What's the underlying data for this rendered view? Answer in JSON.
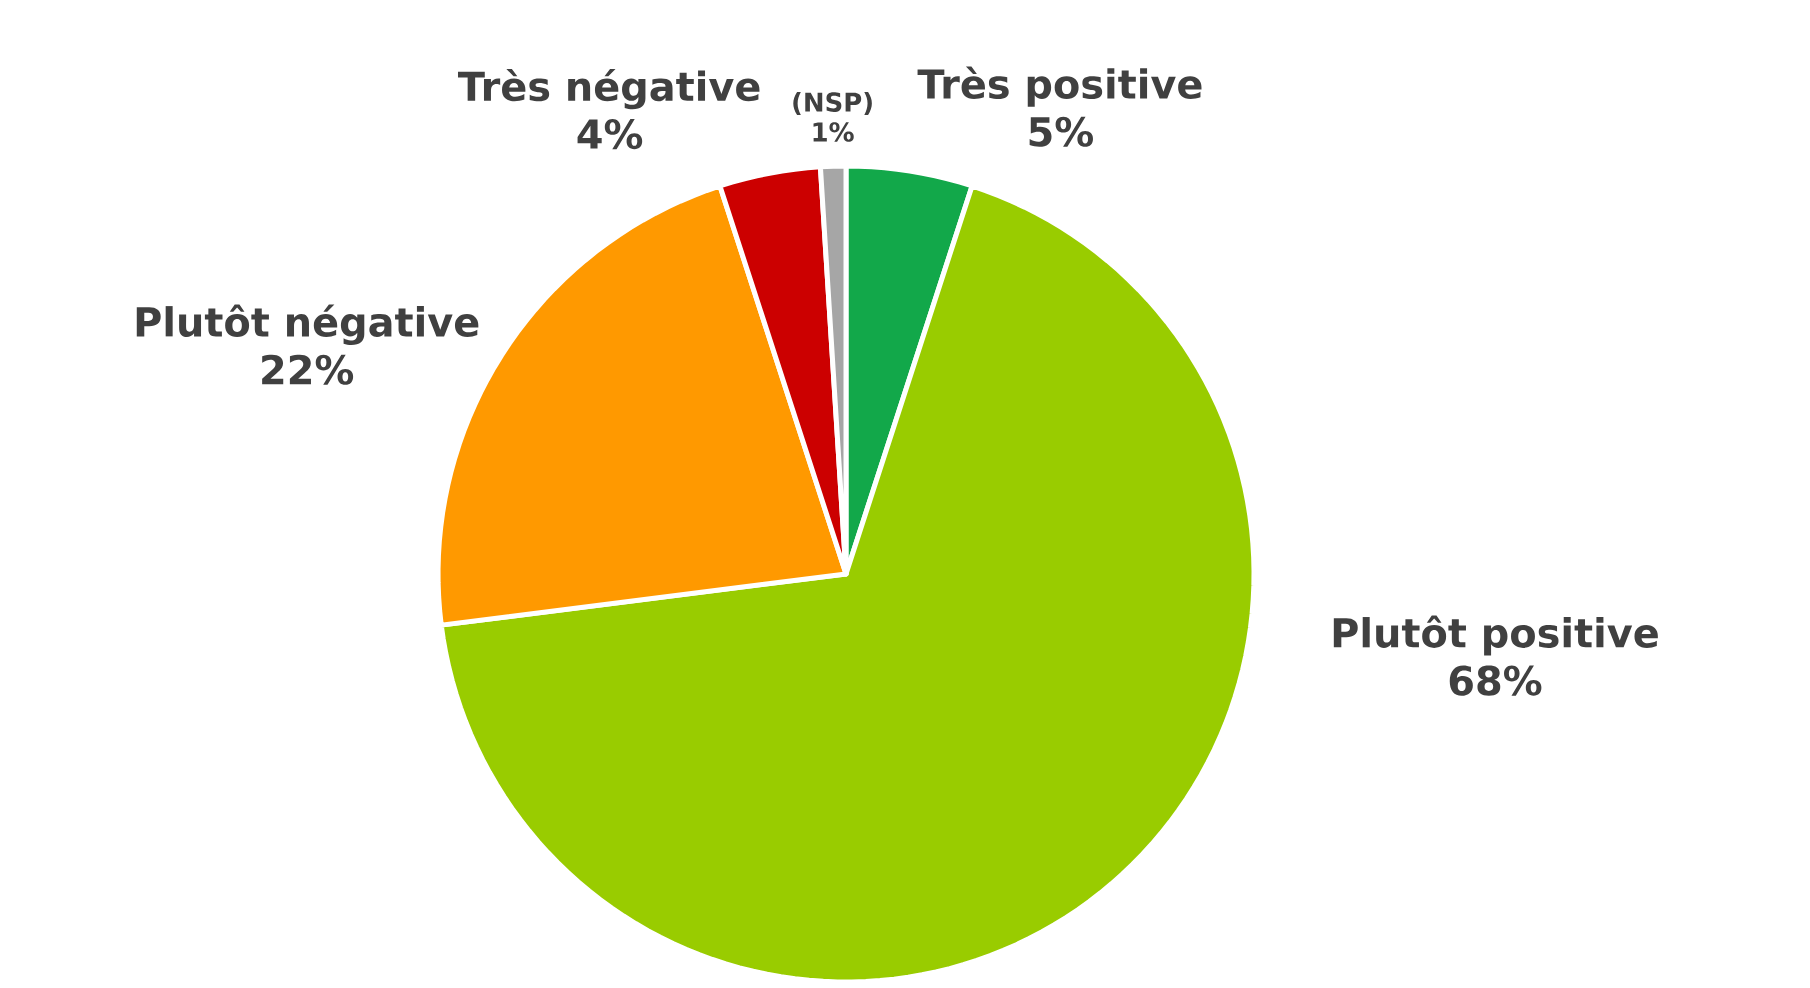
{
  "chart_data": {
    "type": "pie",
    "categories": [
      "Très positive",
      "Plutôt positive",
      "Plutôt négative",
      "Très négative",
      "(NSP)"
    ],
    "values": [
      5,
      68,
      22,
      4,
      1
    ],
    "value_labels": [
      "5%",
      "68%",
      "22%",
      "4%",
      "1%"
    ],
    "colors": [
      "#12a84a",
      "#99cc00",
      "#ff9900",
      "#cc0000",
      "#a6a6a6"
    ]
  }
}
